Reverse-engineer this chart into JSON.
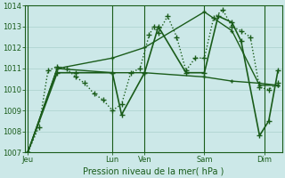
{
  "bg_color": "#cce8e8",
  "grid_color": "#aad0cc",
  "line_color": "#1a5c1a",
  "xlabel": "Pression niveau de la mer( hPa )",
  "ylim": [
    1007,
    1014
  ],
  "yticks": [
    1007,
    1008,
    1009,
    1010,
    1011,
    1012,
    1013,
    1014
  ],
  "xlim": [
    0,
    28
  ],
  "day_labels": [
    "Jeu",
    "Lun",
    "Ven",
    "Sam",
    "Dim"
  ],
  "day_positions": [
    0.3,
    9.5,
    13.0,
    19.5,
    26.0
  ],
  "vline_positions": [
    0.3,
    9.5,
    13.0,
    19.5,
    26.0
  ],
  "series": [
    {
      "x": [
        0.3,
        1.5,
        2.5,
        3.5,
        4.5,
        5.5,
        6.5,
        7.5,
        8.5,
        9.5,
        10.5,
        11.5,
        12.5,
        13.5,
        14.0,
        14.5,
        15.5,
        16.5,
        17.5,
        18.5,
        19.5,
        20.5,
        21.5,
        22.5,
        23.5,
        24.5,
        25.5,
        26.5,
        27.5
      ],
      "y": [
        1007.0,
        1008.2,
        1010.9,
        1011.1,
        1011.0,
        1010.6,
        1010.3,
        1009.8,
        1009.5,
        1009.0,
        1009.3,
        1010.8,
        1011.0,
        1012.6,
        1013.0,
        1012.7,
        1013.5,
        1012.5,
        1010.9,
        1011.5,
        1011.5,
        1013.4,
        1013.8,
        1013.0,
        1012.8,
        1012.5,
        1010.1,
        1010.0,
        1010.3
      ],
      "linestyle": "dotted",
      "marker": "+",
      "markersize": 4,
      "lw": 1.0
    },
    {
      "x": [
        0.3,
        3.5,
        5.5,
        9.5,
        10.5,
        13.0,
        14.5,
        17.5,
        19.5,
        21.0,
        22.5,
        23.5,
        25.5,
        26.5,
        27.5
      ],
      "y": [
        1007.0,
        1010.8,
        1010.8,
        1010.8,
        1008.8,
        1010.8,
        1013.0,
        1010.8,
        1010.8,
        1013.5,
        1013.2,
        1012.3,
        1007.8,
        1008.5,
        1010.9
      ],
      "linestyle": "solid",
      "marker": "+",
      "markersize": 4,
      "lw": 1.2
    },
    {
      "x": [
        0.3,
        3.5,
        9.5,
        13.0,
        19.5,
        22.5,
        25.5,
        27.5
      ],
      "y": [
        1007.0,
        1011.0,
        1011.5,
        1012.0,
        1013.7,
        1012.8,
        1010.2,
        1010.2
      ],
      "linestyle": "solid",
      "marker": "+",
      "markersize": 3,
      "lw": 1.0
    },
    {
      "x": [
        0.3,
        3.5,
        9.5,
        13.0,
        19.5,
        22.5,
        25.5,
        27.5
      ],
      "y": [
        1007.0,
        1011.0,
        1010.8,
        1010.8,
        1010.6,
        1010.4,
        1010.3,
        1010.2
      ],
      "linestyle": "solid",
      "marker": "+",
      "markersize": 3,
      "lw": 1.0
    }
  ]
}
